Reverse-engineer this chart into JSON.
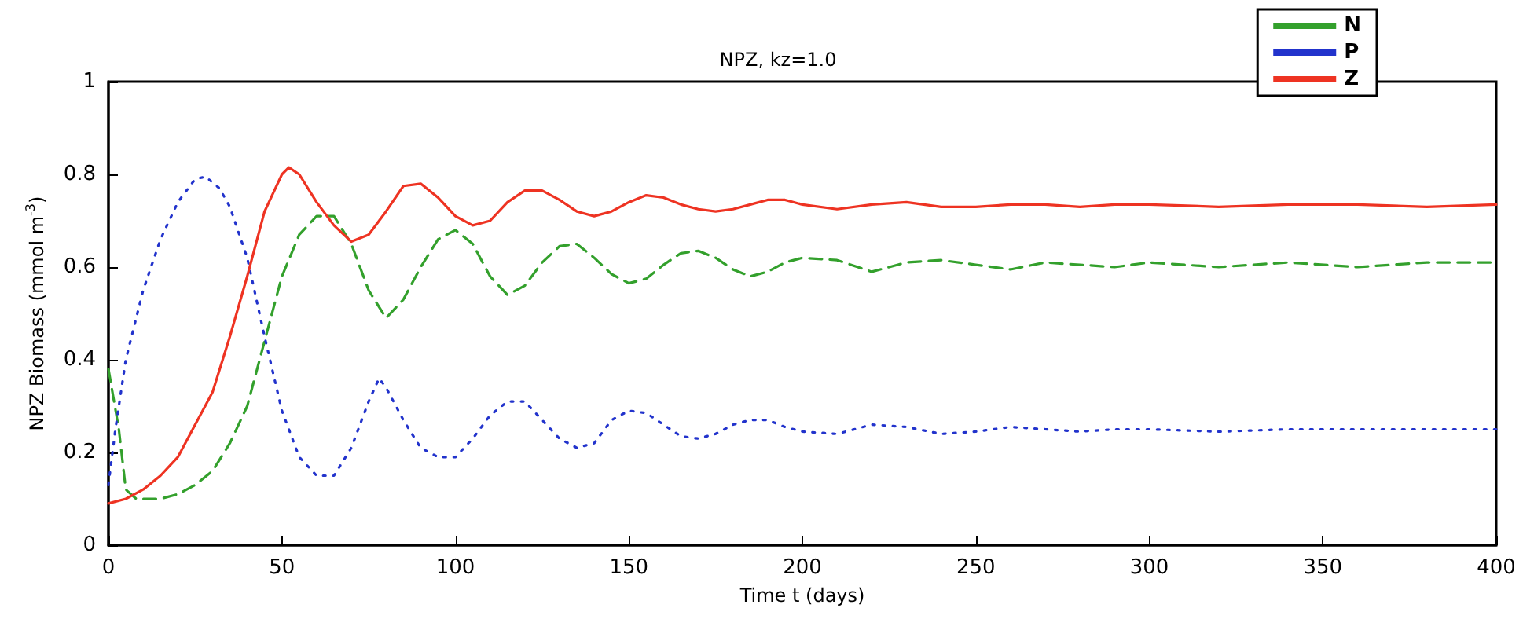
{
  "chart_data": {
    "type": "line",
    "title": "NPZ, kz=1.0",
    "xlabel": "Time t (days)",
    "ylabel": "NPZ Biomass (mmol m$^{-3}$)",
    "xlim": [
      0,
      400
    ],
    "xticks": [
      0,
      50,
      100,
      150,
      200,
      250,
      300,
      350,
      400
    ],
    "ylim": [
      0,
      1
    ],
    "yticks": [
      0,
      0.2,
      0.4,
      0.6,
      0.8,
      1
    ],
    "grid": false,
    "legend": "top right",
    "series": [
      {
        "name": "N",
        "color": "#33a02c",
        "line_style": "dashed",
        "x": [
          0,
          3,
          5,
          8,
          15,
          20,
          25,
          30,
          35,
          40,
          45,
          50,
          55,
          60,
          65,
          70,
          75,
          80,
          85,
          90,
          95,
          100,
          105,
          110,
          115,
          120,
          125,
          130,
          135,
          140,
          145,
          150,
          155,
          160,
          165,
          170,
          175,
          180,
          185,
          190,
          195,
          200,
          210,
          220,
          230,
          240,
          250,
          260,
          270,
          280,
          290,
          300,
          320,
          340,
          360,
          380,
          400
        ],
        "values": [
          0.38,
          0.25,
          0.12,
          0.1,
          0.1,
          0.11,
          0.13,
          0.16,
          0.22,
          0.3,
          0.44,
          0.58,
          0.67,
          0.71,
          0.71,
          0.65,
          0.55,
          0.49,
          0.53,
          0.6,
          0.66,
          0.68,
          0.65,
          0.58,
          0.54,
          0.56,
          0.61,
          0.645,
          0.65,
          0.62,
          0.585,
          0.565,
          0.575,
          0.605,
          0.63,
          0.635,
          0.62,
          0.595,
          0.58,
          0.59,
          0.61,
          0.62,
          0.615,
          0.59,
          0.61,
          0.615,
          0.605,
          0.595,
          0.61,
          0.605,
          0.6,
          0.61,
          0.6,
          0.61,
          0.6,
          0.61,
          0.61
        ]
      },
      {
        "name": "P",
        "color": "#2233cc",
        "line_style": "dotted",
        "x": [
          0,
          2,
          5,
          10,
          15,
          20,
          25,
          28,
          32,
          35,
          40,
          45,
          50,
          55,
          60,
          65,
          70,
          75,
          78,
          80,
          85,
          90,
          95,
          100,
          105,
          110,
          115,
          120,
          125,
          130,
          135,
          140,
          145,
          150,
          155,
          160,
          165,
          170,
          175,
          180,
          185,
          190,
          195,
          200,
          210,
          220,
          230,
          240,
          250,
          260,
          270,
          280,
          290,
          300,
          320,
          340,
          360,
          380,
          400
        ],
        "values": [
          0.13,
          0.25,
          0.4,
          0.55,
          0.66,
          0.74,
          0.79,
          0.795,
          0.77,
          0.73,
          0.62,
          0.45,
          0.29,
          0.19,
          0.15,
          0.15,
          0.21,
          0.31,
          0.36,
          0.34,
          0.27,
          0.21,
          0.19,
          0.19,
          0.23,
          0.28,
          0.31,
          0.31,
          0.27,
          0.23,
          0.21,
          0.22,
          0.27,
          0.29,
          0.285,
          0.26,
          0.235,
          0.23,
          0.24,
          0.26,
          0.27,
          0.27,
          0.255,
          0.245,
          0.24,
          0.26,
          0.255,
          0.24,
          0.245,
          0.255,
          0.25,
          0.245,
          0.25,
          0.25,
          0.245,
          0.25,
          0.25,
          0.25,
          0.25
        ]
      },
      {
        "name": "Z",
        "color": "#ee3322",
        "line_style": "solid",
        "x": [
          0,
          5,
          10,
          15,
          20,
          25,
          30,
          35,
          40,
          45,
          50,
          52,
          55,
          60,
          65,
          70,
          75,
          80,
          85,
          90,
          95,
          100,
          105,
          110,
          115,
          120,
          125,
          130,
          135,
          140,
          145,
          150,
          155,
          160,
          165,
          170,
          175,
          180,
          185,
          190,
          195,
          200,
          210,
          220,
          230,
          240,
          250,
          260,
          270,
          280,
          290,
          300,
          320,
          340,
          360,
          380,
          400
        ],
        "values": [
          0.09,
          0.1,
          0.12,
          0.15,
          0.19,
          0.26,
          0.33,
          0.45,
          0.58,
          0.72,
          0.8,
          0.815,
          0.8,
          0.74,
          0.69,
          0.655,
          0.67,
          0.72,
          0.775,
          0.78,
          0.75,
          0.71,
          0.69,
          0.7,
          0.74,
          0.765,
          0.765,
          0.745,
          0.72,
          0.71,
          0.72,
          0.74,
          0.755,
          0.75,
          0.735,
          0.725,
          0.72,
          0.725,
          0.735,
          0.745,
          0.745,
          0.735,
          0.725,
          0.735,
          0.74,
          0.73,
          0.73,
          0.735,
          0.735,
          0.73,
          0.735,
          0.735,
          0.73,
          0.735,
          0.735,
          0.73,
          0.735
        ]
      }
    ]
  }
}
